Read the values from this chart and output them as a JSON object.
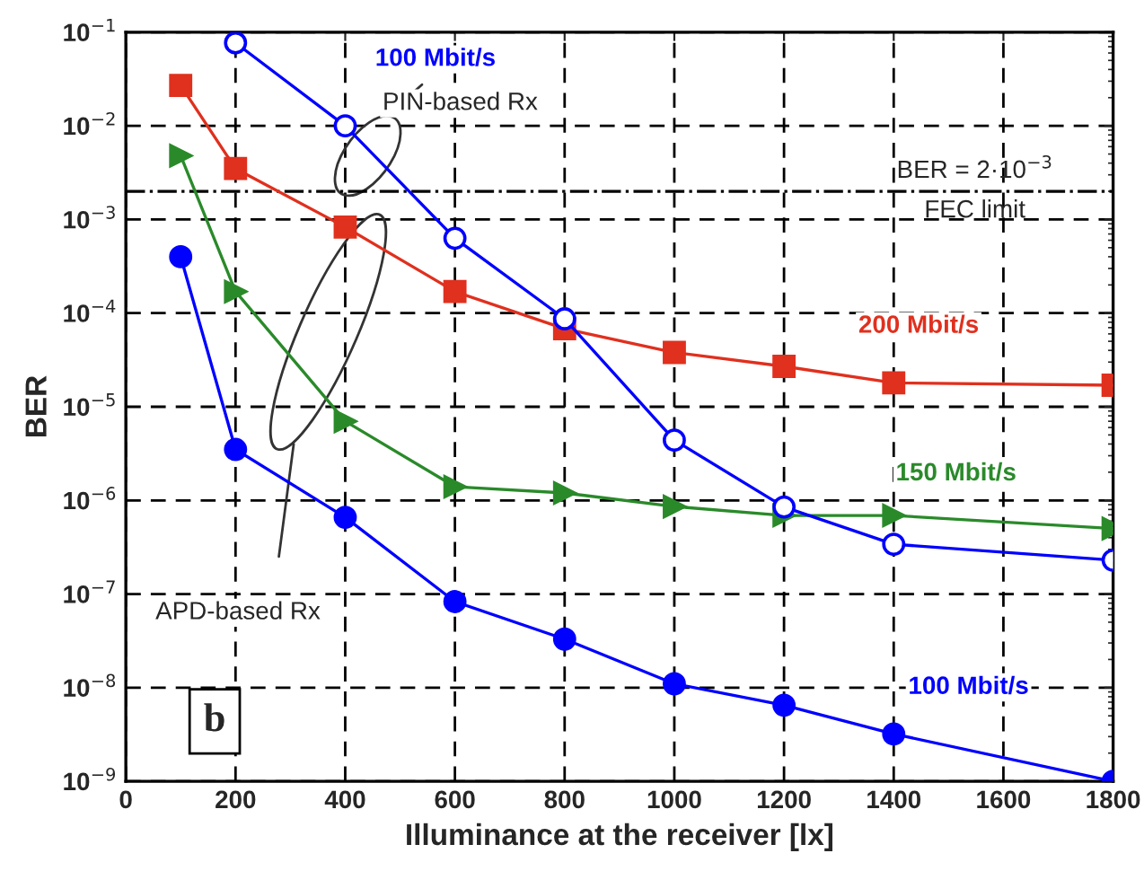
{
  "chart_data": {
    "type": "line",
    "xlabel": "Illuminance at the receiver [lx]",
    "ylabel": "BER",
    "log": "y",
    "xlim": [
      0,
      1800
    ],
    "xticks": [
      0,
      200,
      400,
      600,
      800,
      1000,
      1200,
      1400,
      1600,
      1800
    ],
    "ylim": [
      1e-09,
      0.1
    ],
    "yticks": [
      {
        "value": 1e-09,
        "label": "10$^{−9}$"
      },
      {
        "value": 1e-08,
        "label": "10$^{−8}$"
      },
      {
        "value": 1e-07,
        "label": "10$^{−7}$"
      },
      {
        "value": 1e-06,
        "label": "10$^{−6}$"
      },
      {
        "value": 1e-05,
        "label": "10$^{−5}$"
      },
      {
        "value": 0.0001,
        "label": "10$^{−4}$"
      },
      {
        "value": 0.001,
        "label": "10$^{−3}$"
      },
      {
        "value": 0.01,
        "label": "10$^{−2}$"
      },
      {
        "value": 0.1,
        "label": "10$^{−1}$"
      }
    ],
    "grid": true,
    "line_style": "solid",
    "series": [
      {
        "name": "100 Mbit/s",
        "color": "#0000ff",
        "marker": "circle-open",
        "x": [
          200,
          400,
          600,
          800,
          1000,
          1200,
          1400,
          1800
        ],
        "values": [
          0.077,
          0.01,
          0.00063,
          8.7e-05,
          4.4e-06,
          8.5e-07,
          3.4e-07,
          2.3e-07
        ]
      },
      {
        "name": "200 Mbit/s",
        "color": "#e0301e",
        "marker": "square",
        "x": [
          100,
          200,
          400,
          600,
          800,
          1000,
          1200,
          1400,
          1800
        ],
        "values": [
          0.027,
          0.0035,
          0.00083,
          0.00017,
          6.8e-05,
          3.8e-05,
          2.7e-05,
          1.8e-05,
          1.7e-05
        ]
      },
      {
        "name": "150 Mbit/s",
        "color": "#2a8a2a",
        "marker": "triangle",
        "x": [
          100,
          200,
          400,
          600,
          800,
          1000,
          1200,
          1400,
          1800
        ],
        "values": [
          0.0048,
          0.00017,
          7e-06,
          1.4e-06,
          1.2e-06,
          8.6e-07,
          6.9e-07,
          6.9e-07,
          5e-07
        ]
      },
      {
        "name": "100 Mbit/s",
        "color": "#0000ff",
        "marker": "circle",
        "x": [
          100,
          200,
          400,
          600,
          800,
          1000,
          1200,
          1400,
          1800
        ],
        "values": [
          0.0004,
          3.5e-06,
          6.6e-07,
          8.3e-08,
          3.3e-08,
          1.1e-08,
          6.5e-09,
          3.2e-09,
          1e-09
        ]
      }
    ],
    "ref_lines": [
      {
        "axis": "y",
        "value": 0.002,
        "label": "BER = 2·10$^{−3}$\nFEC limit",
        "color": "#000000",
        "line_style": "dashdot"
      }
    ],
    "annotations": [
      "PIN-based Rx",
      "APD-based Rx",
      "b"
    ]
  }
}
